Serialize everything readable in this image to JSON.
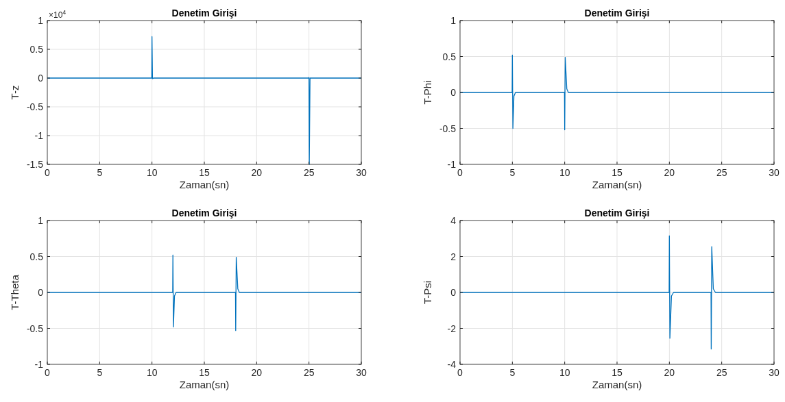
{
  "chart_data": [
    {
      "type": "line",
      "title": "Denetim Girişi",
      "xlabel": "Zaman(sn)",
      "ylabel": "T-z",
      "annotations": [
        "×10$^{4}$"
      ],
      "xlim": [
        0,
        30
      ],
      "ylim": [
        -1.5,
        1
      ],
      "xticks": [
        0,
        5,
        10,
        15,
        20,
        25,
        30
      ],
      "yticks": [
        -1.5,
        -1,
        -0.5,
        0,
        0.5,
        1
      ],
      "grid": true,
      "series": [
        {
          "color": "#0072bd",
          "x": [
            0,
            9.98,
            10,
            10.05,
            10.15,
            10.3,
            24.95,
            25,
            25.03,
            25.1,
            30
          ],
          "values": [
            0,
            0,
            0.72,
            -0.01,
            0,
            0,
            0,
            0.01,
            -1.5,
            0,
            0
          ]
        }
      ]
    },
    {
      "type": "line",
      "title": "Denetim Girişi",
      "xlabel": "Zaman(sn)",
      "ylabel": "T-Phi",
      "xlim": [
        0,
        30
      ],
      "ylim": [
        -1,
        1
      ],
      "xticks": [
        0,
        5,
        10,
        15,
        20,
        25,
        30
      ],
      "yticks": [
        -1,
        -0.5,
        0,
        0.5,
        1
      ],
      "grid": true,
      "series": [
        {
          "color": "#0072bd",
          "x": [
            0,
            4.98,
            5,
            5.05,
            5.15,
            5.3,
            9.98,
            10,
            10.05,
            10.2,
            10.35,
            30
          ],
          "values": [
            0,
            0,
            0.52,
            -0.5,
            -0.05,
            0,
            0,
            -0.52,
            0.49,
            0.05,
            0,
            0
          ]
        }
      ]
    },
    {
      "type": "line",
      "title": "Denetim Girişi",
      "xlabel": "Zaman(sn)",
      "ylabel": "T-Theta",
      "xlim": [
        0,
        30
      ],
      "ylim": [
        -1,
        1
      ],
      "xticks": [
        0,
        5,
        10,
        15,
        20,
        25,
        30
      ],
      "yticks": [
        -1,
        -0.5,
        0,
        0.5,
        1
      ],
      "grid": true,
      "series": [
        {
          "color": "#0072bd",
          "x": [
            0,
            11.98,
            12,
            12.05,
            12.15,
            12.3,
            17.98,
            18,
            18.05,
            18.2,
            18.35,
            30
          ],
          "values": [
            0,
            0,
            0.52,
            -0.48,
            -0.05,
            0,
            0,
            -0.53,
            0.49,
            0.05,
            0,
            0
          ]
        }
      ]
    },
    {
      "type": "line",
      "title": "Denetim Girişi",
      "xlabel": "Zaman(sn)",
      "ylabel": "T-Psi",
      "xlim": [
        0,
        30
      ],
      "ylim": [
        -4,
        4
      ],
      "xticks": [
        0,
        5,
        10,
        15,
        20,
        25,
        30
      ],
      "yticks": [
        -4,
        -2,
        0,
        2,
        4
      ],
      "grid": true,
      "series": [
        {
          "color": "#0072bd",
          "x": [
            0,
            19.98,
            20,
            20.05,
            20.2,
            20.4,
            23.98,
            24,
            24.05,
            24.2,
            24.4,
            30
          ],
          "values": [
            0,
            0,
            3.15,
            -2.55,
            -0.2,
            0,
            0,
            -3.15,
            2.55,
            0.2,
            0,
            0
          ]
        }
      ]
    }
  ]
}
